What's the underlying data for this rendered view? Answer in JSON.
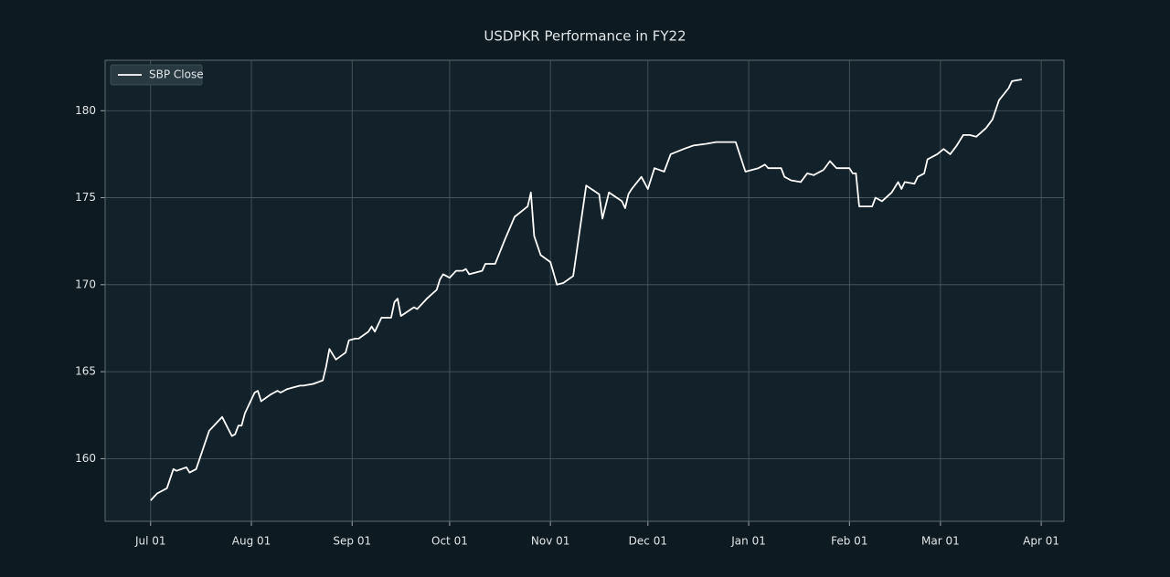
{
  "chart_data": {
    "type": "line",
    "title": "USDPKR Performance in FY22",
    "x": [
      "Jul 01",
      "Jul 03",
      "Jul 06",
      "Jul 08",
      "Jul 09",
      "Jul 12",
      "Jul 13",
      "Jul 15",
      "Jul 19",
      "Jul 23",
      "Jul 26",
      "Jul 27",
      "Jul 28",
      "Jul 29",
      "Jul 30",
      "Aug 02",
      "Aug 03",
      "Aug 04",
      "Aug 07",
      "Aug 09",
      "Aug 10",
      "Aug 12",
      "Aug 14",
      "Aug 16",
      "Aug 17",
      "Aug 20",
      "Aug 23",
      "Aug 24",
      "Aug 25",
      "Aug 27",
      "Aug 30",
      "Aug 31",
      "Sep 02",
      "Sep 03",
      "Sep 06",
      "Sep 07",
      "Sep 08",
      "Sep 10",
      "Sep 13",
      "Sep 14",
      "Sep 15",
      "Sep 16",
      "Sep 20",
      "Sep 21",
      "Sep 23",
      "Sep 24",
      "Sep 27",
      "Sep 28",
      "Sep 29",
      "Oct 01",
      "Oct 03",
      "Oct 05",
      "Oct 06",
      "Oct 07",
      "Oct 11",
      "Oct 12",
      "Oct 15",
      "Oct 18",
      "Oct 21",
      "Oct 25",
      "Oct 26",
      "Oct 27",
      "Oct 29",
      "Nov 01",
      "Nov 03",
      "Nov 05",
      "Nov 08",
      "Nov 12",
      "Nov 16",
      "Nov 17",
      "Nov 19",
      "Nov 23",
      "Nov 24",
      "Nov 25",
      "Nov 26",
      "Nov 29",
      "Dec 01",
      "Dec 03",
      "Dec 06",
      "Dec 08",
      "Dec 12",
      "Dec 15",
      "Dec 19",
      "Dec 22",
      "Dec 28",
      "Dec 31",
      "Jan 04",
      "Jan 06",
      "Jan 07",
      "Jan 11",
      "Jan 12",
      "Jan 14",
      "Jan 17",
      "Jan 19",
      "Jan 21",
      "Jan 24",
      "Jan 26",
      "Jan 28",
      "Feb 01",
      "Feb 02",
      "Feb 03",
      "Feb 04",
      "Feb 08",
      "Feb 09",
      "Feb 11",
      "Feb 14",
      "Feb 16",
      "Feb 17",
      "Feb 18",
      "Feb 21",
      "Feb 22",
      "Feb 24",
      "Feb 25",
      "Feb 28",
      "Mar 02",
      "Mar 04",
      "Mar 06",
      "Mar 08",
      "Mar 10",
      "Mar 12",
      "Mar 15",
      "Mar 17",
      "Mar 19",
      "Mar 22",
      "Mar 23",
      "Mar 26"
    ],
    "series": [
      {
        "name": "SBP Close",
        "color": "#ffffff",
        "values": [
          157.6,
          158.0,
          158.3,
          159.4,
          159.3,
          159.5,
          159.2,
          159.4,
          161.6,
          162.4,
          161.3,
          161.4,
          161.9,
          161.9,
          162.6,
          163.8,
          163.9,
          163.3,
          163.7,
          163.9,
          163.8,
          164.0,
          164.1,
          164.2,
          164.2,
          164.3,
          164.5,
          165.3,
          166.3,
          165.7,
          166.1,
          166.8,
          166.9,
          166.9,
          167.3,
          167.6,
          167.3,
          168.1,
          168.1,
          169.0,
          169.2,
          168.2,
          168.7,
          168.6,
          169.0,
          169.2,
          169.7,
          170.3,
          170.6,
          170.4,
          170.8,
          170.8,
          170.9,
          170.6,
          170.8,
          171.2,
          171.2,
          172.6,
          173.9,
          174.5,
          175.3,
          172.8,
          171.7,
          171.3,
          170.0,
          170.1,
          170.5,
          175.7,
          175.2,
          173.8,
          175.3,
          174.8,
          174.4,
          175.2,
          175.5,
          176.2,
          175.5,
          176.7,
          176.5,
          177.5,
          177.8,
          178.0,
          178.1,
          178.2,
          178.2,
          176.5,
          176.7,
          176.9,
          176.7,
          176.7,
          176.2,
          176.0,
          175.9,
          176.4,
          176.3,
          176.6,
          177.1,
          176.7,
          176.7,
          176.4,
          176.4,
          174.5,
          174.5,
          175.0,
          174.8,
          175.3,
          175.9,
          175.5,
          175.9,
          175.8,
          176.2,
          176.4,
          177.2,
          177.5,
          177.8,
          177.5,
          178.0,
          178.6,
          178.6,
          178.5,
          179.0,
          179.5,
          180.6,
          181.3,
          181.7,
          181.8
        ]
      }
    ],
    "xlim": [
      "Jun 17",
      "Apr 08"
    ],
    "xticks": [
      "Jul 01",
      "Aug 01",
      "Sep 01",
      "Oct 01",
      "Nov 01",
      "Dec 01",
      "Jan 01",
      "Feb 01",
      "Mar 01",
      "Apr 01"
    ],
    "ylim": [
      156.4,
      182.9
    ],
    "yticks": [
      160,
      165,
      170,
      175,
      180
    ],
    "grid": true,
    "legend": "upper left"
  }
}
